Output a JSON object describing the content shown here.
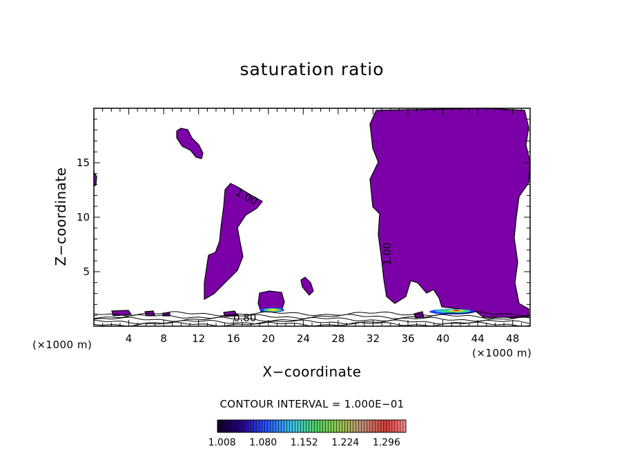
{
  "chart_data": {
    "type": "contour",
    "title": "saturation ratio",
    "xlabel": "X−coordinate",
    "ylabel": "Z−coordinate",
    "x_units": "(×1000 m)",
    "xlim": [
      0,
      50
    ],
    "ylim": [
      0,
      20
    ],
    "x_ticks": [
      4,
      8,
      12,
      16,
      20,
      24,
      28,
      32,
      36,
      40,
      44,
      48
    ],
    "y_ticks": [
      5,
      10,
      15
    ],
    "contour_interval": "CONTOUR INTERVAL = 1.000E−01",
    "contour_labels": [
      "1.00",
      "1.00",
      "0.80"
    ],
    "colorbar_ticks": [
      "1.008",
      "1.080",
      "1.152",
      "1.224",
      "1.296"
    ],
    "colorbar_range": [
      1.0,
      1.33
    ],
    "fill_color": "#7b00a8",
    "grid": false
  }
}
